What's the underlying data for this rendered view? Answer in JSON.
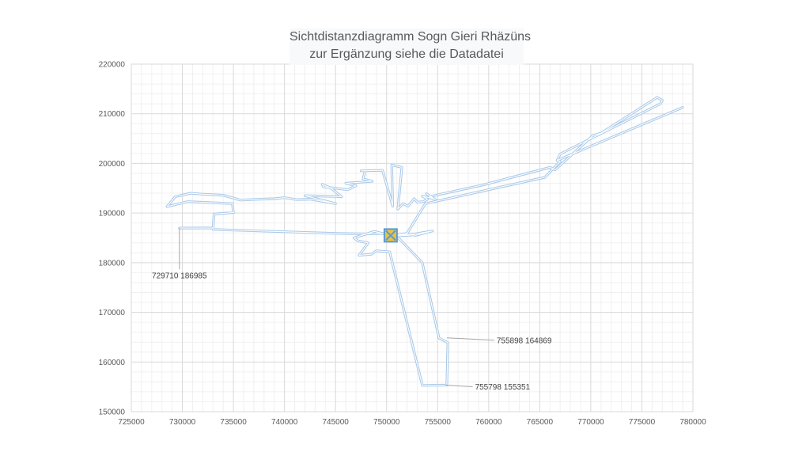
{
  "chart_data": {
    "type": "line",
    "title": [
      "Sichtdistanzdiagramm Sogn Gieri Rhäzüns",
      "zur  Ergänzung siehe die Datadatei"
    ],
    "xlabel": "",
    "ylabel": "",
    "xlim": [
      725000,
      780000
    ],
    "ylim": [
      150000,
      220000
    ],
    "x_ticks": [
      "725000",
      "730000",
      "735000",
      "740000",
      "745000",
      "750000",
      "755000",
      "760000",
      "765000",
      "770000",
      "775000",
      "780000"
    ],
    "y_ticks": [
      "150000",
      "160000",
      "170000",
      "180000",
      "190000",
      "200000",
      "210000",
      "220000"
    ],
    "grid": "major and minor",
    "observer": {
      "x": 750400,
      "y": 185500,
      "marker": "crossed-square"
    },
    "annotations": [
      {
        "text": "729710 186985",
        "x": 729710,
        "y": 186985
      },
      {
        "text": "755898 164869",
        "x": 755898,
        "y": 164869
      },
      {
        "text": "755798 155351",
        "x": 755798,
        "y": 155351
      }
    ],
    "series": [
      {
        "color": "#a9c9e8",
        "x": [
          750400,
          750000,
          748000,
          745200,
          733000,
          733000,
          729710,
          729710,
          733000,
          733100,
          735000,
          734900,
          730500,
          728500,
          729300,
          730800,
          732000,
          734000,
          735700,
          737500,
          739000,
          740000,
          741200,
          742500,
          745000,
          742000,
          745600,
          744500,
          743700,
          743800,
          746200,
          747000,
          746000,
          748600,
          747700,
          747900,
          747500,
          749600,
          750600,
          750500,
          751500,
          751100,
          751600,
          752100,
          752700,
          753000,
          753600,
          754000,
          753500,
          754600,
          753900,
          754800,
          754200,
          759500,
          766000,
          766500,
          770200,
          771000,
          776500,
          777000,
          776800,
          767000,
          766700,
          779000,
          766700,
          767000,
          765500,
          753800,
          752000,
          750400,
          751300,
          752800,
          754500,
          752800,
          752700,
          751200,
          750400,
          751300,
          753500,
          755100,
          755100,
          756000,
          755900,
          753500,
          750300,
          749000,
          748500,
          747300,
          748200,
          747200,
          746800,
          748800,
          750400
        ],
        "y": [
          185500,
          185900,
          185800,
          185900,
          186700,
          187000,
          186985,
          186985,
          187000,
          189800,
          190100,
          191900,
          192300,
          191300,
          193300,
          194000,
          193800,
          193600,
          192600,
          192800,
          192900,
          193100,
          192700,
          192800,
          191900,
          193500,
          193300,
          195100,
          195800,
          195300,
          194700,
          195500,
          196000,
          196400,
          196900,
          198500,
          198500,
          198600,
          191400,
          199700,
          199200,
          190800,
          191900,
          191400,
          192900,
          192200,
          192300,
          192800,
          193400,
          192900,
          193900,
          192700,
          193300,
          195700,
          199200,
          198700,
          205600,
          206100,
          213300,
          212700,
          212000,
          201900,
          200600,
          211300,
          200600,
          200400,
          197200,
          191900,
          185900,
          185500,
          185600,
          185800,
          186400,
          185500,
          185600,
          185400,
          185500,
          184700,
          180000,
          165100,
          164869,
          163900,
          155351,
          155300,
          182200,
          182400,
          181700,
          181500,
          184000,
          184400,
          185000,
          186300,
          185500
        ]
      }
    ]
  }
}
